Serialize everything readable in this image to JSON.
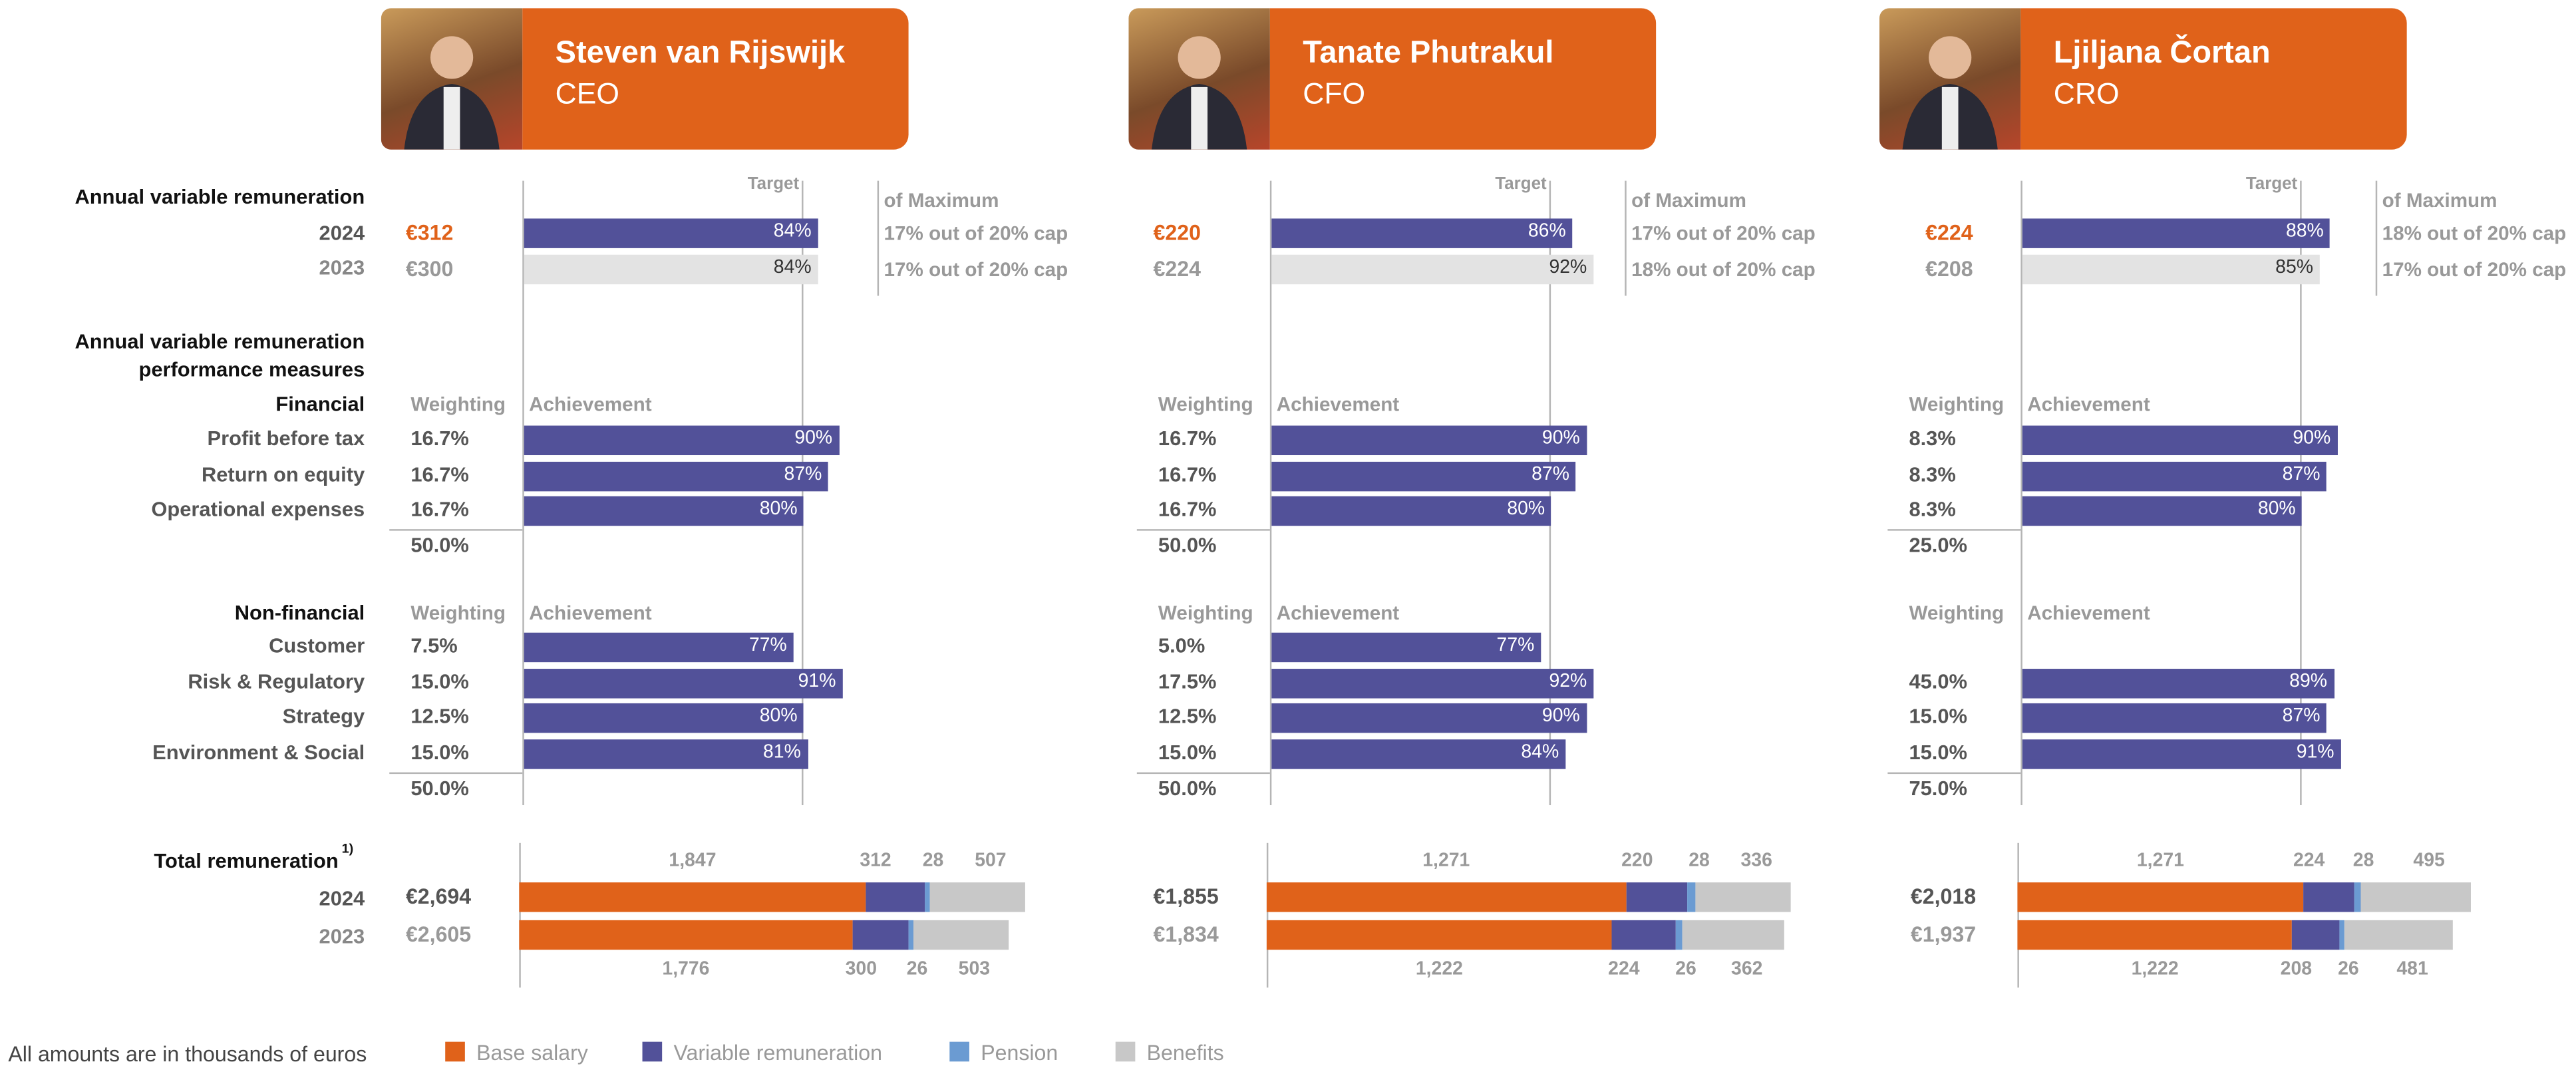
{
  "colors": {
    "base_salary": "#E0621A",
    "variable": "#525199",
    "pension": "#6B9BD2",
    "benefits": "#C8C8C8",
    "prior_year_bar": "#E3E3E3",
    "accent": "#E0621A"
  },
  "labels": {
    "avr_title": "Annual variable remuneration",
    "year_2024": "2024",
    "year_2023": "2023",
    "perf_title_1": "Annual variable remuneration",
    "perf_title_2": "performance measures",
    "financial": "Financial",
    "financial_items": [
      "Profit before tax",
      "Return on equity",
      "Operational expenses"
    ],
    "non_financial": "Non-financial",
    "non_financial_items": [
      "Customer",
      "Risk & Regulatory",
      "Strategy",
      "Environment & Social"
    ],
    "total_title": "Total remuneration",
    "total_footnote": "1)",
    "target": "Target",
    "of_maximum": "of Maximum",
    "weighting": "Weighting",
    "achievement": "Achievement"
  },
  "legend": {
    "note": "All amounts are in thousands of euros",
    "items": [
      "Base salary",
      "Variable remuneration",
      "Pension",
      "Benefits"
    ]
  },
  "chart_data": [
    {
      "type": "bar",
      "name": "Steven van Rijswijk",
      "role": "CEO",
      "avr": [
        {
          "year": "2024",
          "amount": "€312",
          "achievement": 84,
          "label": "84%",
          "cap": "17% out of 20% cap"
        },
        {
          "year": "2023",
          "amount": "€300",
          "achievement": 84,
          "label": "84%",
          "cap": "17% out of 20% cap"
        }
      ],
      "target_pct": 80,
      "financial": {
        "weights": [
          "16.7%",
          "16.7%",
          "16.7%"
        ],
        "achievement": [
          90,
          87,
          80
        ],
        "labels": [
          "90%",
          "87%",
          "80%"
        ],
        "total": "50.0%"
      },
      "non_financial": {
        "weights": [
          "7.5%",
          "15.0%",
          "12.5%",
          "15.0%"
        ],
        "achievement": [
          77,
          91,
          80,
          81
        ],
        "labels": [
          "77%",
          "91%",
          "80%",
          "81%"
        ],
        "total": "50.0%"
      },
      "total": [
        {
          "year": "2024",
          "amount": "€2,694",
          "values": [
            1847,
            312,
            28,
            507
          ],
          "labels": [
            "1,847",
            "312",
            "28",
            "507"
          ]
        },
        {
          "year": "2023",
          "amount": "€2,605",
          "values": [
            1776,
            300,
            26,
            503
          ],
          "labels": [
            "1,776",
            "300",
            "26",
            "503"
          ]
        }
      ]
    },
    {
      "type": "bar",
      "name": "Tanate Phutrakul",
      "role": "CFO",
      "avr": [
        {
          "year": "2024",
          "amount": "€220",
          "achievement": 86,
          "label": "86%",
          "cap": "17% out of 20% cap"
        },
        {
          "year": "2023",
          "amount": "€224",
          "achievement": 92,
          "label": "92%",
          "cap": "18% out of 20% cap"
        }
      ],
      "target_pct": 80,
      "financial": {
        "weights": [
          "16.7%",
          "16.7%",
          "16.7%"
        ],
        "achievement": [
          90,
          87,
          80
        ],
        "labels": [
          "90%",
          "87%",
          "80%"
        ],
        "total": "50.0%"
      },
      "non_financial": {
        "weights": [
          "5.0%",
          "17.5%",
          "12.5%",
          "15.0%"
        ],
        "achievement": [
          77,
          92,
          90,
          84
        ],
        "labels": [
          "77%",
          "92%",
          "90%",
          "84%"
        ],
        "total": "50.0%"
      },
      "total": [
        {
          "year": "2024",
          "amount": "€1,855",
          "values": [
            1271,
            220,
            28,
            336
          ],
          "labels": [
            "1,271",
            "220",
            "28",
            "336"
          ]
        },
        {
          "year": "2023",
          "amount": "€1,834",
          "values": [
            1222,
            224,
            26,
            362
          ],
          "labels": [
            "1,222",
            "224",
            "26",
            "362"
          ]
        }
      ]
    },
    {
      "type": "bar",
      "name": "Ljiljana Čortan",
      "role": "CRO",
      "avr": [
        {
          "year": "2024",
          "amount": "€224",
          "achievement": 88,
          "label": "88%",
          "cap": "18% out of 20% cap"
        },
        {
          "year": "2023",
          "amount": "€208",
          "achievement": 85,
          "label": "85%",
          "cap": "17% out of 20% cap"
        }
      ],
      "target_pct": 80,
      "financial": {
        "weights": [
          "8.3%",
          "8.3%",
          "8.3%"
        ],
        "achievement": [
          90,
          87,
          80
        ],
        "labels": [
          "90%",
          "87%",
          "80%"
        ],
        "total": "25.0%"
      },
      "non_financial": {
        "weights": [
          "45.0%",
          "15.0%",
          "15.0%"
        ],
        "achievement": [
          89,
          87,
          91
        ],
        "labels": [
          "89%",
          "87%",
          "91%"
        ],
        "total": "75.0%"
      },
      "non_financial_rows": [
        1,
        2,
        3
      ],
      "total": [
        {
          "year": "2024",
          "amount": "€2,018",
          "values": [
            1271,
            224,
            28,
            495
          ],
          "labels": [
            "1,271",
            "224",
            "28",
            "495"
          ]
        },
        {
          "year": "2023",
          "amount": "€1,937",
          "values": [
            1222,
            208,
            26,
            481
          ],
          "labels": [
            "1,222",
            "208",
            "26",
            "481"
          ]
        }
      ]
    }
  ]
}
